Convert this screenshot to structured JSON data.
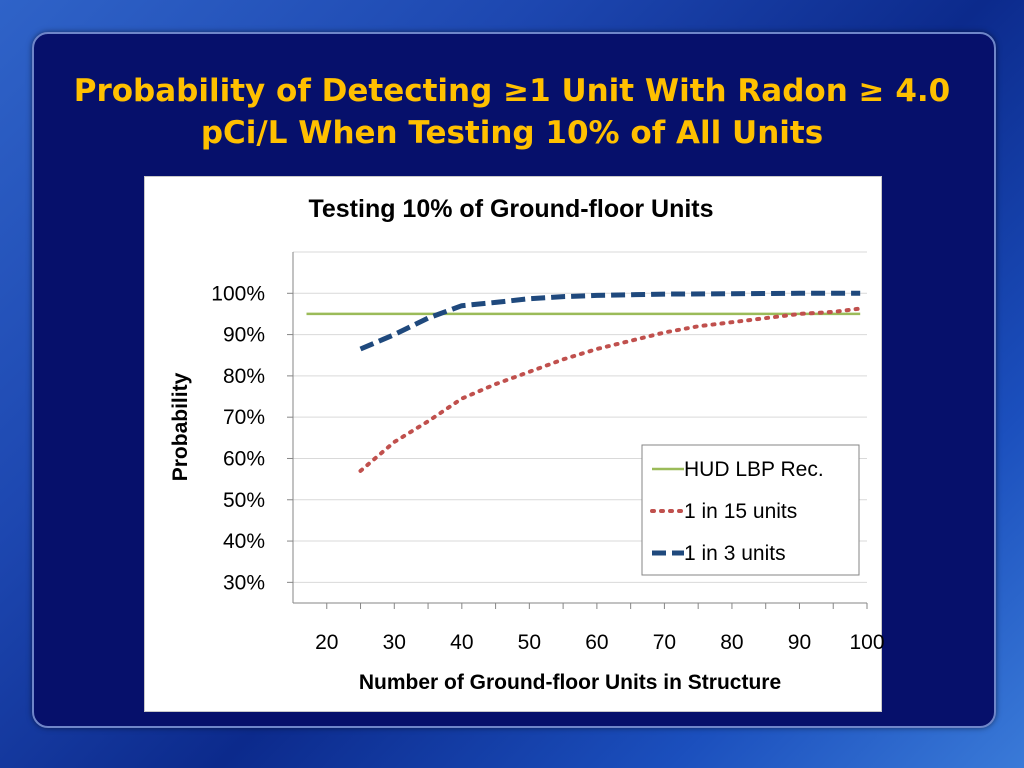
{
  "slide": {
    "title_line1": "Probability of Detecting ≥1 Unit With Radon ≥ 4.0",
    "title_line2": "pCi/L When Testing 10% of All Units"
  },
  "chart_data": {
    "type": "line",
    "title": "Testing 10% of Ground-floor Units",
    "xlabel": "Number of Ground-floor Units in Structure",
    "ylabel": "Probability",
    "xlim": [
      15,
      100
    ],
    "ylim": [
      0.25,
      1.1
    ],
    "x_ticks": [
      20,
      30,
      40,
      50,
      60,
      70,
      80,
      90,
      100
    ],
    "x_tick_labels": [
      "20",
      "30",
      "40",
      "50",
      "60",
      "70",
      "80",
      "90",
      "100"
    ],
    "y_ticks": [
      0.3,
      0.4,
      0.5,
      0.6,
      0.7,
      0.8,
      0.9,
      1.0
    ],
    "y_tick_labels": [
      "30%",
      "40%",
      "50%",
      "60%",
      "70%",
      "80%",
      "90%",
      "100%"
    ],
    "grid": true,
    "legend_position": "bottom-right",
    "series": [
      {
        "name": "HUD LBP Rec.",
        "color": "#9bbb59",
        "style": "solid",
        "x": [
          17,
          99
        ],
        "y": [
          0.95,
          0.95
        ]
      },
      {
        "name": "1 in 15 units",
        "color": "#c0504d",
        "style": "dotted",
        "x": [
          25,
          30,
          35,
          40,
          45,
          50,
          55,
          60,
          65,
          70,
          75,
          80,
          85,
          90,
          95,
          99
        ],
        "y": [
          0.57,
          0.64,
          0.69,
          0.745,
          0.78,
          0.81,
          0.84,
          0.865,
          0.885,
          0.905,
          0.92,
          0.93,
          0.94,
          0.95,
          0.955,
          0.963
        ]
      },
      {
        "name": "1 in 3 units",
        "color": "#1f497d",
        "style": "dashed",
        "x": [
          25,
          30,
          35,
          40,
          45,
          50,
          55,
          60,
          70,
          80,
          90,
          99
        ],
        "y": [
          0.865,
          0.9,
          0.94,
          0.97,
          0.978,
          0.987,
          0.992,
          0.995,
          0.998,
          0.999,
          1.0,
          1.0
        ]
      }
    ]
  }
}
